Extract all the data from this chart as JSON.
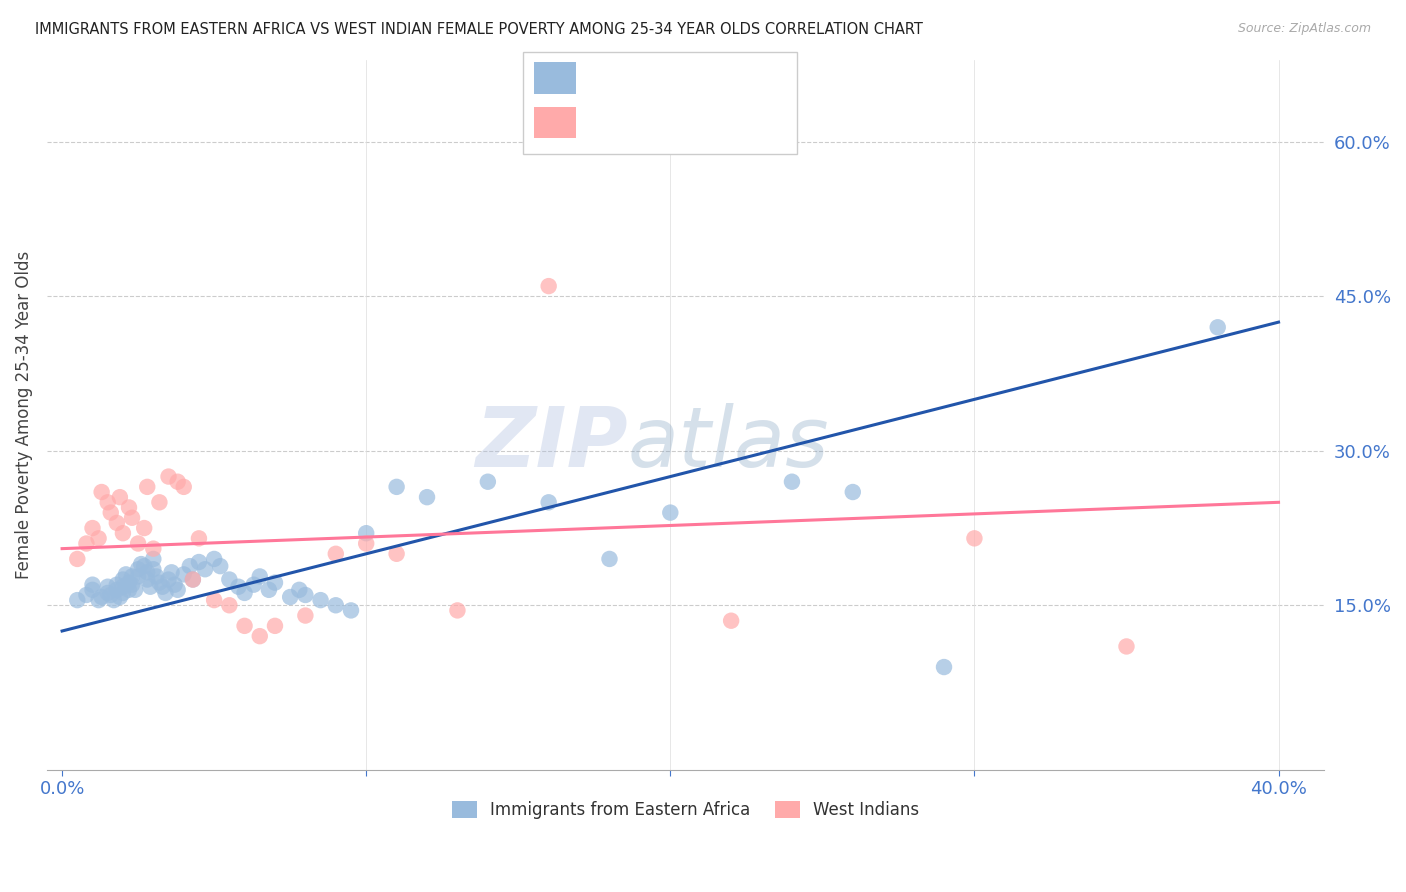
{
  "title": "IMMIGRANTS FROM EASTERN AFRICA VS WEST INDIAN FEMALE POVERTY AMONG 25-34 YEAR OLDS CORRELATION CHART",
  "source": "Source: ZipAtlas.com",
  "ylabel": "Female Poverty Among 25-34 Year Olds",
  "ylabel_right_ticks": [
    "15.0%",
    "30.0%",
    "45.0%",
    "60.0%"
  ],
  "ylabel_right_vals": [
    0.15,
    0.3,
    0.45,
    0.6
  ],
  "xgrid_ticks": [
    0.0,
    0.1,
    0.2,
    0.3,
    0.4
  ],
  "ygrid_ticks": [
    0.15,
    0.3,
    0.45,
    0.6
  ],
  "xlim": [
    -0.005,
    0.415
  ],
  "ylim": [
    -0.01,
    0.68
  ],
  "legend_label1": "Immigrants from Eastern Africa",
  "legend_label2": "West Indians",
  "blue_color": "#99BBDD",
  "pink_color": "#FFAAAA",
  "blue_line_color": "#2255AA",
  "pink_line_color": "#FF7799",
  "watermark_zip": "ZIP",
  "watermark_atlas": "atlas",
  "blue_scatter_x": [
    0.005,
    0.008,
    0.01,
    0.01,
    0.012,
    0.013,
    0.015,
    0.015,
    0.016,
    0.017,
    0.018,
    0.018,
    0.019,
    0.02,
    0.02,
    0.02,
    0.021,
    0.022,
    0.022,
    0.023,
    0.023,
    0.024,
    0.025,
    0.025,
    0.026,
    0.027,
    0.028,
    0.028,
    0.029,
    0.03,
    0.03,
    0.031,
    0.032,
    0.033,
    0.034,
    0.035,
    0.036,
    0.037,
    0.038,
    0.04,
    0.042,
    0.043,
    0.045,
    0.047,
    0.05,
    0.052,
    0.055,
    0.058,
    0.06,
    0.063,
    0.065,
    0.068,
    0.07,
    0.075,
    0.078,
    0.08,
    0.085,
    0.09,
    0.095,
    0.1,
    0.11,
    0.12,
    0.14,
    0.16,
    0.18,
    0.2,
    0.24,
    0.26,
    0.29,
    0.38
  ],
  "blue_scatter_y": [
    0.155,
    0.16,
    0.165,
    0.17,
    0.155,
    0.158,
    0.162,
    0.168,
    0.16,
    0.155,
    0.17,
    0.165,
    0.158,
    0.175,
    0.168,
    0.162,
    0.18,
    0.172,
    0.165,
    0.178,
    0.17,
    0.165,
    0.185,
    0.178,
    0.19,
    0.188,
    0.182,
    0.175,
    0.168,
    0.195,
    0.185,
    0.178,
    0.172,
    0.168,
    0.162,
    0.175,
    0.182,
    0.17,
    0.165,
    0.18,
    0.188,
    0.175,
    0.192,
    0.185,
    0.195,
    0.188,
    0.175,
    0.168,
    0.162,
    0.17,
    0.178,
    0.165,
    0.172,
    0.158,
    0.165,
    0.16,
    0.155,
    0.15,
    0.145,
    0.22,
    0.265,
    0.255,
    0.27,
    0.25,
    0.195,
    0.24,
    0.27,
    0.26,
    0.09,
    0.42
  ],
  "pink_scatter_x": [
    0.005,
    0.008,
    0.01,
    0.012,
    0.013,
    0.015,
    0.016,
    0.018,
    0.019,
    0.02,
    0.022,
    0.023,
    0.025,
    0.027,
    0.028,
    0.03,
    0.032,
    0.035,
    0.038,
    0.04,
    0.043,
    0.045,
    0.05,
    0.055,
    0.06,
    0.065,
    0.07,
    0.08,
    0.09,
    0.1,
    0.11,
    0.13,
    0.16,
    0.22,
    0.3,
    0.35
  ],
  "pink_scatter_y": [
    0.195,
    0.21,
    0.225,
    0.215,
    0.26,
    0.25,
    0.24,
    0.23,
    0.255,
    0.22,
    0.245,
    0.235,
    0.21,
    0.225,
    0.265,
    0.205,
    0.25,
    0.275,
    0.27,
    0.265,
    0.175,
    0.215,
    0.155,
    0.15,
    0.13,
    0.12,
    0.13,
    0.14,
    0.2,
    0.21,
    0.2,
    0.145,
    0.46,
    0.135,
    0.215,
    0.11
  ],
  "blue_trend_x": [
    0.0,
    0.4
  ],
  "blue_trend_y": [
    0.125,
    0.425
  ],
  "pink_trend_x": [
    0.0,
    0.4
  ],
  "pink_trend_y": [
    0.205,
    0.25
  ]
}
